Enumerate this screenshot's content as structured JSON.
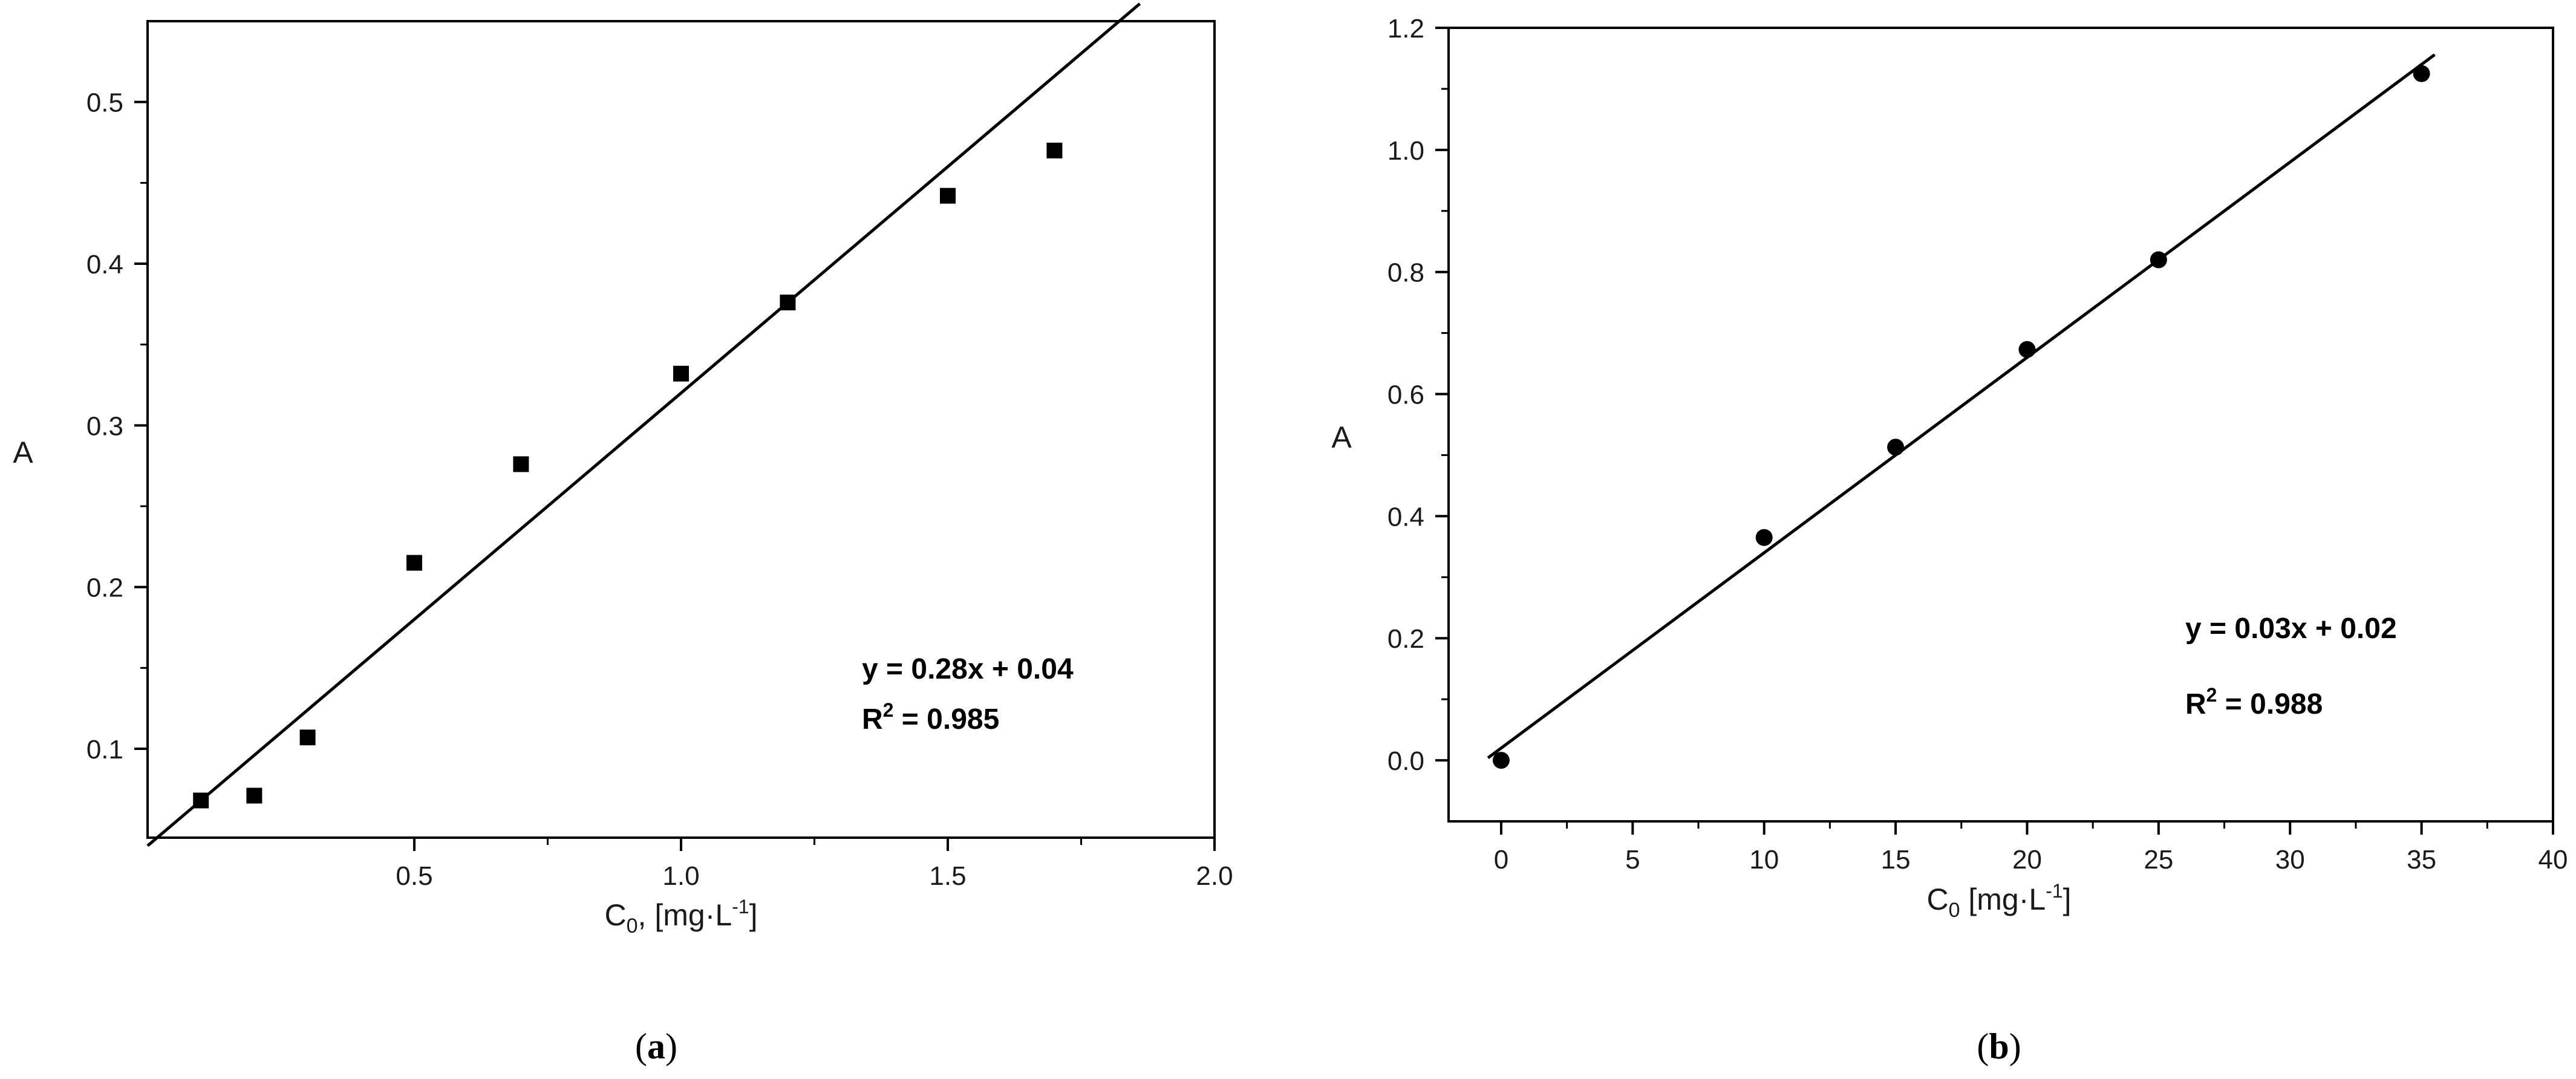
{
  "chart_data": [
    {
      "type": "scatter",
      "panel_label": "a",
      "xlabel": "C0, [mg·L-1]",
      "xlabel_parts": {
        "main": "C",
        "sub": "0",
        "mid": ", [mg·L",
        "sup": "-1",
        "end": "]"
      },
      "ylabel": "A",
      "xlim": [
        0.0,
        2.0
      ],
      "ylim": [
        0.045,
        0.55
      ],
      "x_ticks": [
        0.5,
        1.0,
        1.5,
        2.0
      ],
      "x_tick_labels": [
        "0.5",
        "1.0",
        "1.5",
        "2.0"
      ],
      "y_ticks": [
        0.1,
        0.2,
        0.3,
        0.4,
        0.5
      ],
      "y_tick_labels": [
        "0.1",
        "0.2",
        "0.3",
        "0.4",
        "0.5"
      ],
      "series": [
        {
          "marker": "square",
          "color": "#000000",
          "x": [
            0.1,
            0.2,
            0.3,
            0.5,
            0.7,
            1.0,
            1.2,
            1.5,
            1.7
          ],
          "y": [
            0.068,
            0.071,
            0.107,
            0.215,
            0.276,
            0.332,
            0.376,
            0.442,
            0.47
          ]
        }
      ],
      "fit_line": {
        "slope": 0.28,
        "intercept": 0.04,
        "x_range": [
          0.0,
          1.86
        ]
      },
      "equation": "y = 0.28x + 0.04",
      "r2_prefix": "R",
      "r2_sup": "2",
      "r2_value": " = 0.985",
      "grid": false,
      "caption": "a"
    },
    {
      "type": "scatter",
      "panel_label": "b",
      "xlabel": "C0 [mg·L-1]",
      "xlabel_parts": {
        "main": "C",
        "sub": "0",
        "mid": " [mg·L",
        "sup": "-1",
        "end": "]"
      },
      "ylabel": "A",
      "xlim": [
        -2,
        40
      ],
      "ylim": [
        -0.1,
        1.2
      ],
      "x_ticks": [
        0,
        5,
        10,
        15,
        20,
        25,
        30,
        35,
        40
      ],
      "x_tick_labels": [
        "0",
        "5",
        "10",
        "15",
        "20",
        "25",
        "30",
        "35",
        "40"
      ],
      "y_ticks": [
        0.0,
        0.2,
        0.4,
        0.6,
        0.8,
        1.0,
        1.2
      ],
      "y_tick_labels": [
        "0.0",
        "0.2",
        "0.4",
        "0.6",
        "0.8",
        "1.0",
        "1.2"
      ],
      "series": [
        {
          "marker": "circle",
          "color": "#000000",
          "x": [
            0,
            10,
            15,
            20,
            25,
            35
          ],
          "y": [
            0.0,
            0.365,
            0.513,
            0.673,
            0.82,
            1.125
          ]
        }
      ],
      "fit_line": {
        "slope": 0.032,
        "intercept": 0.02,
        "x_range": [
          -0.5,
          35.5
        ]
      },
      "equation": "y = 0.03x + 0.02",
      "r2_prefix": "R",
      "r2_sup": "2",
      "r2_value": " = 0.988",
      "grid": false,
      "caption": "b"
    }
  ]
}
